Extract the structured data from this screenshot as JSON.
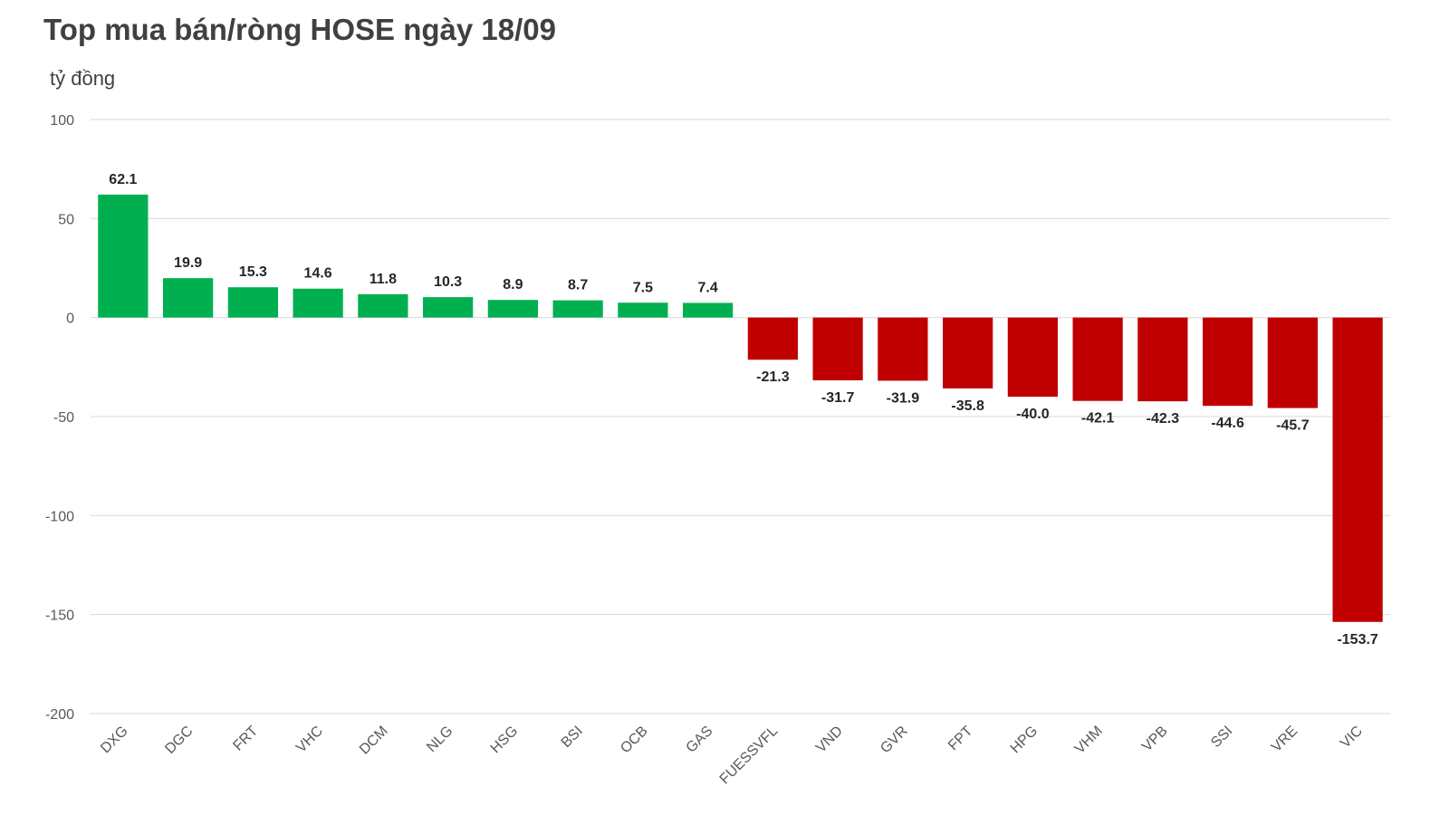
{
  "title": "Top mua bán/ròng HOSE ngày 18/09",
  "unit": "tỷ đồng",
  "colors": {
    "positive": "#00B050",
    "negative": "#C00000",
    "grid": "#D9D9D9",
    "axis_text": "#595959",
    "label_text": "#262626"
  },
  "chart_data": {
    "type": "bar",
    "title": "Top mua bán/ròng HOSE ngày 18/09",
    "ylabel": "tỷ đồng",
    "xlabel": "",
    "ylim": [
      -200,
      100
    ],
    "yticks": [
      100,
      50,
      0,
      -50,
      -100,
      -150,
      -200
    ],
    "grid": true,
    "legend": "none",
    "categories": [
      "DXG",
      "DGC",
      "FRT",
      "VHC",
      "DCM",
      "NLG",
      "HSG",
      "BSI",
      "OCB",
      "GAS",
      "FUESSVFL",
      "VND",
      "GVR",
      "FPT",
      "HPG",
      "VHM",
      "VPB",
      "SSI",
      "VRE",
      "VIC"
    ],
    "values": [
      62.1,
      19.9,
      15.3,
      14.6,
      11.8,
      10.3,
      8.9,
      8.7,
      7.5,
      7.4,
      -21.3,
      -31.7,
      -31.9,
      -35.8,
      -40.0,
      -42.1,
      -42.3,
      -44.6,
      -45.7,
      -153.7
    ],
    "value_labels": [
      "62.1",
      "19.9",
      "15.3",
      "14.6",
      "11.8",
      "10.3",
      "8.9",
      "8.7",
      "7.5",
      "7.4",
      "-21.3",
      "-31.7",
      "-31.9",
      "-35.8",
      "-40.0",
      "-42.1",
      "-42.3",
      "-44.6",
      "-45.7",
      "-153.7"
    ]
  }
}
